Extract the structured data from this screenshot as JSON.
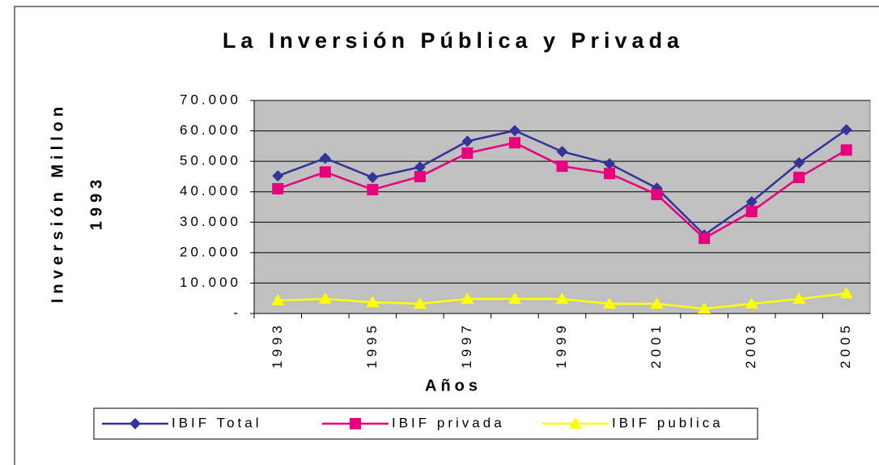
{
  "chart_data": {
    "type": "line",
    "title": "La Inversión Pública y Privada",
    "ylabel": [
      "Inversión Millon",
      "1993"
    ],
    "xlabel": "Años",
    "categories": [
      "1993",
      null,
      "1995",
      null,
      "1997",
      null,
      "1999",
      null,
      "2001",
      null,
      "2003",
      null,
      "2005"
    ],
    "series": [
      {
        "name": "IBIF Total",
        "color": "#333399",
        "marker": "diamond",
        "values": [
          45200,
          51000,
          44700,
          48100,
          56600,
          60100,
          53200,
          49200,
          41200,
          25800,
          36700,
          49500,
          60400
        ]
      },
      {
        "name": "IBIF privada",
        "color": "#e6007e",
        "marker": "square",
        "values": [
          41000,
          46500,
          40700,
          45000,
          52700,
          56100,
          48400,
          46000,
          39100,
          24700,
          33500,
          44700,
          53700
        ]
      },
      {
        "name": "IBIF publica",
        "color": "#ffff00",
        "marker": "triangle",
        "values": [
          4300,
          4800,
          3700,
          3200,
          4800,
          4800,
          4800,
          3200,
          3200,
          1600,
          3200,
          4800,
          6600
        ]
      }
    ],
    "ylim": [
      0,
      70000
    ],
    "yticks": [
      {
        "value": 0,
        "label": "-"
      },
      {
        "value": 10000,
        "label": "10.000"
      },
      {
        "value": 20000,
        "label": "20.000"
      },
      {
        "value": 30000,
        "label": "30.000"
      },
      {
        "value": 40000,
        "label": "40.000"
      },
      {
        "value": 50000,
        "label": "50.000"
      },
      {
        "value": 60000,
        "label": "60.000"
      },
      {
        "value": 70000,
        "label": "70.000"
      }
    ],
    "grid": true,
    "legend": "bottom"
  }
}
